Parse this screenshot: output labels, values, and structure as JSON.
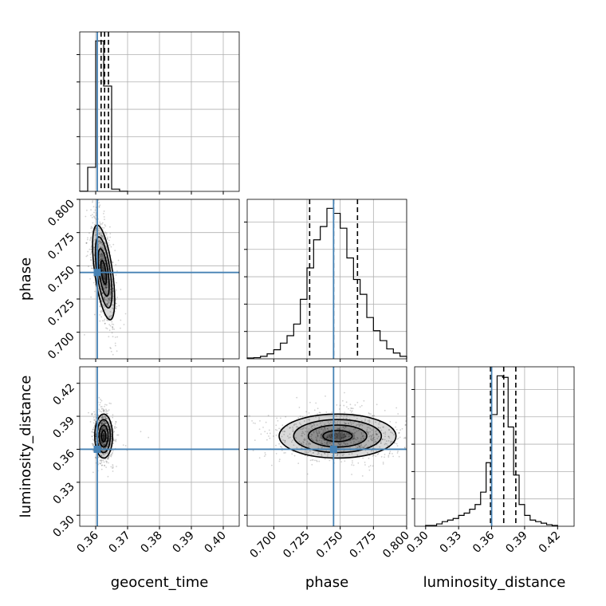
{
  "chart_data": {
    "type": "corner",
    "parameters": [
      {
        "name": "geocent_time",
        "label": "geocent_time",
        "range": [
          0.355,
          0.405
        ],
        "ticks": [
          0.36,
          0.37,
          0.38,
          0.39,
          0.4
        ],
        "tick_labels": [
          "0.36",
          "0.37",
          "0.38",
          "0.39",
          "0.40"
        ],
        "truth": 0.3605,
        "quantiles": [
          0.3617,
          0.3628,
          0.364
        ]
      },
      {
        "name": "phase",
        "label": "phase",
        "range": [
          0.68,
          0.8
        ],
        "ticks": [
          0.7,
          0.725,
          0.75,
          0.775,
          0.8
        ],
        "tick_labels": [
          "0.700",
          "0.725",
          "0.750",
          "0.775",
          "0.800"
        ],
        "truth": 0.745,
        "quantiles": [
          0.727,
          0.745,
          0.763
        ]
      },
      {
        "name": "luminosity_distance",
        "label": "luminosity_distance",
        "range": [
          0.29,
          0.435
        ],
        "ticks": [
          0.3,
          0.33,
          0.36,
          0.39,
          0.42
        ],
        "tick_labels": [
          "0.30",
          "0.33",
          "0.36",
          "0.39",
          "0.42"
        ],
        "truth": 0.36,
        "quantiles": [
          0.359,
          0.371,
          0.382
        ]
      }
    ],
    "histograms": [
      {
        "parameter": "geocent_time",
        "bin_edges": [
          0.355,
          0.3575,
          0.36,
          0.3625,
          0.365,
          0.3675,
          0.37
        ],
        "counts": [
          0.1,
          16,
          100,
          70,
          1.5,
          0.1
        ]
      },
      {
        "parameter": "phase",
        "bin_edges": [
          0.68,
          0.685,
          0.69,
          0.695,
          0.7,
          0.705,
          0.71,
          0.715,
          0.72,
          0.725,
          0.73,
          0.735,
          0.74,
          0.745,
          0.75,
          0.755,
          0.76,
          0.765,
          0.77,
          0.775,
          0.78,
          0.785,
          0.79,
          0.795,
          0.8
        ],
        "counts": [
          0.5,
          0.7,
          1.5,
          3,
          5.5,
          9.5,
          14,
          21,
          36,
          55,
          72,
          80,
          91,
          88,
          79,
          61,
          48,
          39,
          25,
          17,
          11,
          6,
          3.5,
          1.5
        ]
      },
      {
        "parameter": "luminosity_distance",
        "bin_edges": [
          0.3,
          0.305,
          0.31,
          0.315,
          0.32,
          0.325,
          0.33,
          0.335,
          0.34,
          0.345,
          0.35,
          0.355,
          0.36,
          0.365,
          0.37,
          0.375,
          0.38,
          0.385,
          0.39,
          0.395,
          0.4,
          0.405,
          0.41,
          0.415,
          0.42
        ],
        "counts": [
          0.5,
          0.5,
          1.5,
          3,
          4,
          5,
          7,
          8.5,
          11,
          14,
          22,
          41,
          72,
          97,
          96,
          64,
          33,
          14,
          7,
          4,
          3,
          2,
          1,
          0.5
        ]
      }
    ],
    "panels_2d": [
      {
        "x": "geocent_time",
        "y": "phase",
        "center": [
          0.3625,
          0.745
        ],
        "spread": [
          0.0014,
          0.018
        ],
        "tilt_deg": 8
      },
      {
        "x": "geocent_time",
        "y": "luminosity_distance",
        "center": [
          0.3625,
          0.372
        ],
        "spread": [
          0.0014,
          0.01
        ],
        "tilt_deg": 0
      },
      {
        "x": "phase",
        "y": "luminosity_distance",
        "center": [
          0.748,
          0.372
        ],
        "spread": [
          0.022,
          0.01
        ],
        "tilt_deg": 0
      }
    ],
    "contour_levels_sigma": [
      0.5,
      1.0,
      1.5,
      2.0
    ],
    "grid": true
  }
}
